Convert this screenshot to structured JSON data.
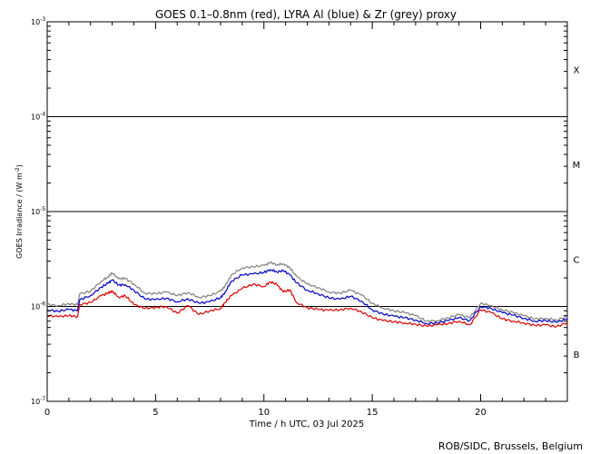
{
  "chart_data": {
    "type": "line",
    "title": "GOES 0.1–0.8nm (red), LYRA Al (blue) & Zr (grey) proxy",
    "xlabel": "Time / h UTC, 03 Jul 2025",
    "ylabel": "GOES Irradiance / (W m",
    "ylabel_sup": "-2",
    "ylabel_close": ")",
    "y_scale": "log",
    "xlim": [
      0,
      24
    ],
    "ylim_exponent": [
      -7,
      -3
    ],
    "x_ticks": [
      0,
      5,
      10,
      15,
      20
    ],
    "x_tick_labels": [
      "0",
      "5",
      "10",
      "15",
      "20"
    ],
    "y_tick_exponents": [
      -7,
      -6,
      -5,
      -4,
      -3
    ],
    "y_tick_base": "10",
    "y_tick_sups": [
      "-7",
      "-6",
      "-5",
      "-4",
      "-3"
    ],
    "flare_class_lines": [
      -6,
      -5,
      -4
    ],
    "flare_classes": [
      {
        "label": "B",
        "center_exponent": -6.5
      },
      {
        "label": "C",
        "center_exponent": -5.5
      },
      {
        "label": "M",
        "center_exponent": -4.5
      },
      {
        "label": "X",
        "center_exponent": -3.5
      }
    ],
    "series": [
      {
        "name": "LYRA Zr proxy",
        "color": "#808080",
        "x": [
          0,
          0.5,
          1.0,
          1.4,
          1.5,
          2.0,
          2.5,
          2.8,
          3.0,
          3.3,
          3.6,
          4.0,
          4.5,
          5.0,
          5.5,
          6.0,
          6.5,
          7.0,
          7.5,
          8.0,
          8.2,
          8.5,
          9.0,
          9.5,
          10.0,
          10.3,
          10.6,
          10.9,
          11.2,
          11.5,
          12.0,
          12.5,
          13.0,
          13.5,
          14.0,
          14.5,
          15.0,
          15.5,
          16.0,
          16.5,
          17.0,
          17.5,
          18.0,
          18.5,
          19.0,
          19.5,
          20.0,
          20.5,
          21.0,
          21.5,
          22.0,
          22.5,
          23.0,
          23.5,
          24.0
        ],
        "values": [
          1.05e-06,
          1.02e-06,
          1.07e-06,
          1.04e-06,
          1.35e-06,
          1.45e-06,
          1.85e-06,
          2.05e-06,
          2.25e-06,
          1.95e-06,
          1.98e-06,
          1.72e-06,
          1.38e-06,
          1.36e-06,
          1.42e-06,
          1.3e-06,
          1.4e-06,
          1.25e-06,
          1.3e-06,
          1.45e-06,
          1.62e-06,
          2.15e-06,
          2.55e-06,
          2.62e-06,
          2.7e-06,
          2.9e-06,
          2.75e-06,
          2.82e-06,
          2.55e-06,
          2.08e-06,
          1.72e-06,
          1.58e-06,
          1.42e-06,
          1.38e-06,
          1.48e-06,
          1.32e-06,
          1.08e-06,
          9.6e-07,
          9e-07,
          8.6e-07,
          8e-07,
          7e-07,
          7.1e-07,
          7.6e-07,
          8.2e-07,
          7.6e-07,
          1.08e-06,
          1.02e-06,
          9.2e-07,
          8.6e-07,
          8e-07,
          7.4e-07,
          7.5e-07,
          7.2e-07,
          7.8e-07
        ]
      },
      {
        "name": "LYRA Al proxy",
        "color": "#0000cc",
        "x": [
          0,
          0.5,
          1.0,
          1.4,
          1.5,
          2.0,
          2.5,
          2.8,
          3.0,
          3.3,
          3.6,
          4.0,
          4.5,
          5.0,
          5.5,
          6.0,
          6.5,
          7.0,
          7.5,
          8.0,
          8.2,
          8.5,
          9.0,
          9.5,
          10.0,
          10.3,
          10.6,
          10.9,
          11.2,
          11.5,
          12.0,
          12.5,
          13.0,
          13.5,
          14.0,
          14.5,
          15.0,
          15.5,
          16.0,
          16.5,
          17.0,
          17.5,
          18.0,
          18.5,
          19.0,
          19.5,
          20.0,
          20.5,
          21.0,
          21.5,
          22.0,
          22.5,
          23.0,
          23.5,
          24.0
        ],
        "values": [
          9.2e-07,
          8.9e-07,
          9.3e-07,
          9e-07,
          1.18e-06,
          1.3e-06,
          1.6e-06,
          1.75e-06,
          1.9e-06,
          1.68e-06,
          1.7e-06,
          1.48e-06,
          1.2e-06,
          1.18e-06,
          1.22e-06,
          1.12e-06,
          1.2e-06,
          1.08e-06,
          1.12e-06,
          1.24e-06,
          1.4e-06,
          1.85e-06,
          2.15e-06,
          2.2e-06,
          2.28e-06,
          2.45e-06,
          2.32e-06,
          2.38e-06,
          2.15e-06,
          1.78e-06,
          1.48e-06,
          1.36e-06,
          1.23e-06,
          1.19e-06,
          1.28e-06,
          1.14e-06,
          9.2e-07,
          8.3e-07,
          7.9e-07,
          7.6e-07,
          7.2e-07,
          6.6e-07,
          6.7e-07,
          7.1e-07,
          7.6e-07,
          7.1e-07,
          1e-06,
          9.5e-07,
          8.6e-07,
          8.1e-07,
          7.5e-07,
          7e-07,
          7.1e-07,
          6.8e-07,
          7.4e-07
        ]
      },
      {
        "name": "GOES 0.1-0.8nm",
        "color": "#dd0000",
        "x": [
          0,
          0.5,
          1.0,
          1.4,
          1.5,
          2.0,
          2.5,
          2.8,
          3.0,
          3.3,
          3.6,
          4.0,
          4.5,
          5.0,
          5.5,
          6.0,
          6.5,
          7.0,
          7.5,
          8.0,
          8.2,
          8.5,
          9.0,
          9.5,
          10.0,
          10.3,
          10.6,
          10.9,
          11.2,
          11.5,
          12.0,
          12.5,
          13.0,
          13.5,
          14.0,
          14.5,
          15.0,
          15.5,
          16.0,
          16.5,
          17.0,
          17.5,
          18.0,
          18.5,
          19.0,
          19.5,
          20.0,
          20.5,
          21.0,
          21.5,
          22.0,
          22.5,
          23.0,
          23.5,
          24.0
        ],
        "values": [
          8e-07,
          7.8e-07,
          8e-07,
          7.8e-07,
          1.05e-06,
          1.1e-06,
          1.3e-06,
          1.38e-06,
          1.45e-06,
          1.25e-06,
          1.3e-06,
          1.05e-06,
          9.5e-07,
          9.8e-07,
          1e-06,
          8.5e-07,
          1.02e-06,
          8.2e-07,
          9e-07,
          9.5e-07,
          1.1e-06,
          1.3e-06,
          1.55e-06,
          1.72e-06,
          1.62e-06,
          1.82e-06,
          1.7e-06,
          1.42e-06,
          1.5e-06,
          1.1e-06,
          9.7e-07,
          9.3e-07,
          9.1e-07,
          9.2e-07,
          9.6e-07,
          8.8e-07,
          7.6e-07,
          7.1e-07,
          6.9e-07,
          6.7e-07,
          6.5e-07,
          6.2e-07,
          6.4e-07,
          6.6e-07,
          7e-07,
          6.4e-07,
          9.2e-07,
          8.6e-07,
          7.4e-07,
          7e-07,
          6.7e-07,
          6.3e-07,
          6.4e-07,
          6.1e-07,
          6.8e-07
        ]
      }
    ]
  },
  "footer": {
    "credit": "ROB/SIDC, Brussels, Belgium"
  }
}
